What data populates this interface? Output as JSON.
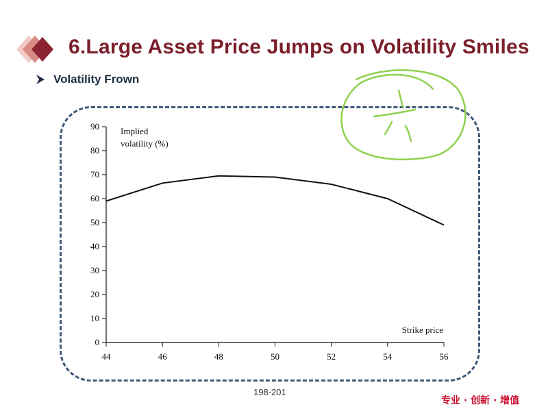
{
  "slide": {
    "title": "6.Large Asset Price Jumps on Volatility Smiles",
    "bullet": "Volatility Frown",
    "page_ref": "198-201",
    "slogan": "专业 · 创新 · 增值",
    "colors": {
      "title": "#7b1f2a",
      "frame": "#3e5a78",
      "annotation": "#8fd14f",
      "slogan": "#c8102e"
    }
  },
  "chart_data": {
    "type": "line",
    "ylabel_line1": "Implied",
    "ylabel_line2": "volatility (%)",
    "xlabel": "Strike price",
    "xlim": [
      44,
      56
    ],
    "ylim": [
      0,
      90
    ],
    "xticks": [
      44,
      46,
      48,
      50,
      52,
      54,
      56
    ],
    "yticks": [
      0,
      10,
      20,
      30,
      40,
      50,
      60,
      70,
      80,
      90
    ],
    "series": [
      {
        "x": [
          44,
          46,
          48,
          50,
          52,
          54,
          56
        ],
        "y": [
          59,
          66.5,
          69.5,
          69,
          66,
          60,
          49
        ]
      }
    ],
    "grid": false
  }
}
